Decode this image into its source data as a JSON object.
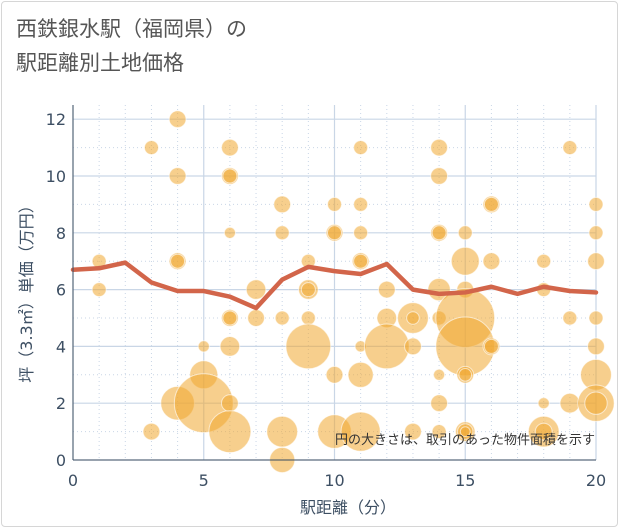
{
  "title_lines": [
    "西鉄銀水駅（福岡県）の",
    "駅距離別土地価格"
  ],
  "chart_data": {
    "type": "scatter",
    "title": "西鉄銀水駅（福岡県）の駅距離別土地価格",
    "xlabel": "駅距離（分）",
    "ylabel": "坪（3.3㎡）単価（万円）",
    "xlim": [
      0,
      20
    ],
    "ylim": [
      0,
      12.5
    ],
    "x_ticks": [
      0,
      5,
      10,
      15,
      20
    ],
    "y_ticks": [
      0,
      2,
      4,
      6,
      8,
      10,
      12
    ],
    "grid": true,
    "note": "円の大きさは、取引のあった物件面積を示す",
    "colors": {
      "bubble": "#f0a830",
      "line": "#d2654a",
      "grid": "#c9d6e6"
    },
    "bubbles": [
      {
        "x": 1,
        "y": 7,
        "r": 1
      },
      {
        "x": 1,
        "y": 6,
        "r": 1
      },
      {
        "x": 3,
        "y": 11,
        "r": 1
      },
      {
        "x": 3,
        "y": 1,
        "r": 1.2
      },
      {
        "x": 4,
        "y": 12,
        "r": 1.2
      },
      {
        "x": 4,
        "y": 10,
        "r": 1.2
      },
      {
        "x": 4,
        "y": 7,
        "r": 1.2
      },
      {
        "x": 4,
        "y": 7,
        "r": 1
      },
      {
        "x": 4,
        "y": 2,
        "r": 2.4
      },
      {
        "x": 5,
        "y": 4,
        "r": 0.8
      },
      {
        "x": 5,
        "y": 3,
        "r": 2
      },
      {
        "x": 5,
        "y": 2,
        "r": 4.2
      },
      {
        "x": 6,
        "y": 11,
        "r": 1.2
      },
      {
        "x": 6,
        "y": 10,
        "r": 1.2
      },
      {
        "x": 6,
        "y": 10,
        "r": 1
      },
      {
        "x": 6,
        "y": 8,
        "r": 0.8
      },
      {
        "x": 6,
        "y": 5,
        "r": 1.2
      },
      {
        "x": 6,
        "y": 5,
        "r": 1
      },
      {
        "x": 6,
        "y": 4,
        "r": 1.4
      },
      {
        "x": 6,
        "y": 2,
        "r": 1.2
      },
      {
        "x": 6,
        "y": 1,
        "r": 3
      },
      {
        "x": 7,
        "y": 6,
        "r": 1.4
      },
      {
        "x": 7,
        "y": 5,
        "r": 1.2
      },
      {
        "x": 8,
        "y": 9,
        "r": 1.2
      },
      {
        "x": 8,
        "y": 8,
        "r": 1
      },
      {
        "x": 8,
        "y": 5,
        "r": 1
      },
      {
        "x": 8,
        "y": 1,
        "r": 2.2
      },
      {
        "x": 8,
        "y": 0,
        "r": 1.8
      },
      {
        "x": 9,
        "y": 7,
        "r": 1
      },
      {
        "x": 9,
        "y": 6,
        "r": 1.4
      },
      {
        "x": 9,
        "y": 6,
        "r": 1
      },
      {
        "x": 9,
        "y": 5,
        "r": 1
      },
      {
        "x": 9,
        "y": 4,
        "r": 3.2
      },
      {
        "x": 10,
        "y": 9,
        "r": 1
      },
      {
        "x": 10,
        "y": 8,
        "r": 1.2
      },
      {
        "x": 10,
        "y": 8,
        "r": 1
      },
      {
        "x": 10,
        "y": 3,
        "r": 1.2
      },
      {
        "x": 10,
        "y": 1,
        "r": 2.4
      },
      {
        "x": 11,
        "y": 11,
        "r": 1
      },
      {
        "x": 11,
        "y": 9,
        "r": 1
      },
      {
        "x": 11,
        "y": 8,
        "r": 1
      },
      {
        "x": 11,
        "y": 7,
        "r": 1.2
      },
      {
        "x": 11,
        "y": 7,
        "r": 1
      },
      {
        "x": 11,
        "y": 4,
        "r": 0.8
      },
      {
        "x": 11,
        "y": 3,
        "r": 1.8
      },
      {
        "x": 11,
        "y": 1,
        "r": 2.8
      },
      {
        "x": 12,
        "y": 6,
        "r": 1.2
      },
      {
        "x": 12,
        "y": 5,
        "r": 1.4
      },
      {
        "x": 12,
        "y": 4,
        "r": 3.2
      },
      {
        "x": 13,
        "y": 5,
        "r": 2.2
      },
      {
        "x": 13,
        "y": 5,
        "r": 0.9
      },
      {
        "x": 13,
        "y": 4,
        "r": 1.2
      },
      {
        "x": 13,
        "y": 1,
        "r": 1.2
      },
      {
        "x": 14,
        "y": 11,
        "r": 1.2
      },
      {
        "x": 14,
        "y": 10,
        "r": 1.2
      },
      {
        "x": 14,
        "y": 8,
        "r": 1.2
      },
      {
        "x": 14,
        "y": 8,
        "r": 1
      },
      {
        "x": 14,
        "y": 6,
        "r": 1.6
      },
      {
        "x": 14,
        "y": 5,
        "r": 1
      },
      {
        "x": 14,
        "y": 3,
        "r": 0.8
      },
      {
        "x": 14,
        "y": 2,
        "r": 1.2
      },
      {
        "x": 14,
        "y": 1,
        "r": 1
      },
      {
        "x": 15,
        "y": 8,
        "r": 1
      },
      {
        "x": 15,
        "y": 7,
        "r": 2
      },
      {
        "x": 15,
        "y": 6,
        "r": 1.2
      },
      {
        "x": 15,
        "y": 5,
        "r": 4.2
      },
      {
        "x": 15,
        "y": 4,
        "r": 4.2
      },
      {
        "x": 15,
        "y": 3,
        "r": 1.2
      },
      {
        "x": 15,
        "y": 3,
        "r": 0.9
      },
      {
        "x": 15,
        "y": 1,
        "r": 1.4
      },
      {
        "x": 15,
        "y": 1,
        "r": 1.1
      },
      {
        "x": 15,
        "y": 1,
        "r": 0.7
      },
      {
        "x": 16,
        "y": 9,
        "r": 1.2
      },
      {
        "x": 16,
        "y": 9,
        "r": 1
      },
      {
        "x": 16,
        "y": 7,
        "r": 1.2
      },
      {
        "x": 16,
        "y": 4,
        "r": 1.2
      },
      {
        "x": 16,
        "y": 4,
        "r": 1
      },
      {
        "x": 18,
        "y": 7,
        "r": 1
      },
      {
        "x": 18,
        "y": 6,
        "r": 1
      },
      {
        "x": 18,
        "y": 2,
        "r": 0.8
      },
      {
        "x": 18,
        "y": 1,
        "r": 2.2
      },
      {
        "x": 18,
        "y": 1,
        "r": 1.2
      },
      {
        "x": 19,
        "y": 11,
        "r": 1
      },
      {
        "x": 19,
        "y": 5,
        "r": 1
      },
      {
        "x": 19,
        "y": 2,
        "r": 1.4
      },
      {
        "x": 20,
        "y": 9,
        "r": 1
      },
      {
        "x": 20,
        "y": 8,
        "r": 1
      },
      {
        "x": 20,
        "y": 7,
        "r": 1.2
      },
      {
        "x": 20,
        "y": 5,
        "r": 1
      },
      {
        "x": 20,
        "y": 4,
        "r": 1.2
      },
      {
        "x": 20,
        "y": 3,
        "r": 2.2
      },
      {
        "x": 20,
        "y": 2,
        "r": 2.6
      },
      {
        "x": 20,
        "y": 2,
        "r": 1.6
      }
    ],
    "line": {
      "x": [
        0,
        1,
        2,
        3,
        4,
        5,
        6,
        7,
        8,
        9,
        10,
        11,
        12,
        13,
        14,
        15,
        16,
        17,
        18,
        19,
        20
      ],
      "y": [
        6.7,
        6.75,
        6.95,
        6.25,
        5.95,
        5.95,
        5.75,
        5.35,
        6.35,
        6.8,
        6.65,
        6.55,
        6.9,
        6.0,
        5.85,
        5.9,
        6.1,
        5.85,
        6.1,
        5.95,
        5.9
      ]
    }
  }
}
